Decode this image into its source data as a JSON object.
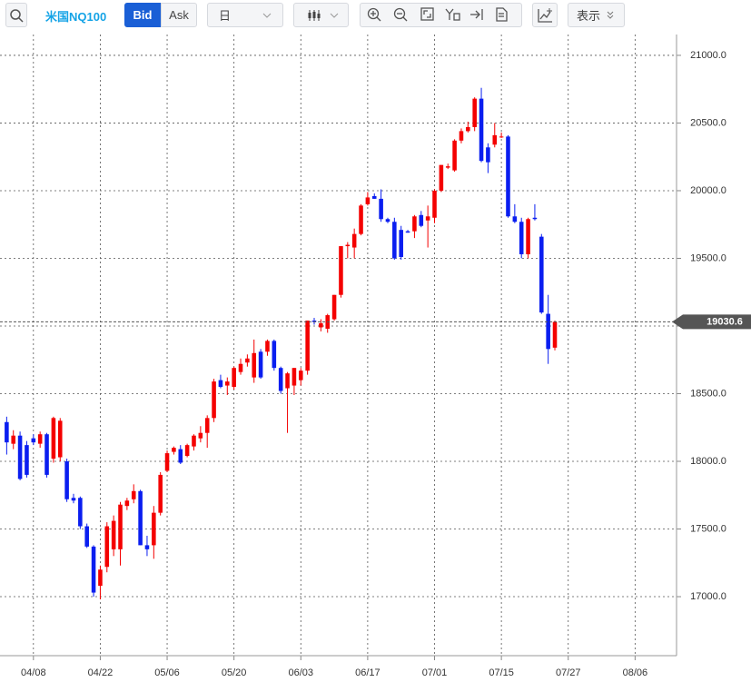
{
  "toolbar": {
    "symbol": "米国NQ100",
    "bid": "Bid",
    "ask": "Ask",
    "period": "日",
    "display": "表示"
  },
  "chart_data": {
    "type": "candlestick",
    "x": [
      0,
      1,
      2,
      3,
      4,
      5,
      6,
      7,
      8,
      9,
      10,
      11,
      12,
      13,
      14,
      15,
      16,
      17,
      18,
      19,
      20,
      21,
      22,
      23,
      24,
      25,
      26,
      27,
      28,
      29,
      30,
      31,
      32,
      33,
      34,
      35,
      36,
      37,
      38,
      39,
      40,
      41,
      42,
      43,
      44,
      45,
      46,
      47,
      48,
      49,
      50,
      51,
      52,
      53,
      54,
      55,
      56,
      57,
      58,
      59,
      60,
      61,
      62,
      63,
      64,
      65,
      66,
      67,
      68,
      69,
      70,
      71,
      72,
      73,
      74,
      75,
      76,
      77,
      78,
      79,
      80,
      81,
      82
    ],
    "open": [
      18290,
      18130,
      18190,
      18120,
      18170,
      18130,
      18200,
      18020,
      18030,
      18000,
      17730,
      17730,
      17520,
      17370,
      17080,
      17220,
      17350,
      17350,
      17670,
      17720,
      17780,
      17380,
      17380,
      17620,
      17930,
      18070,
      18090,
      18040,
      18110,
      18170,
      18210,
      18320,
      18600,
      18560,
      18550,
      18660,
      18730,
      18620,
      18810,
      18810,
      18890,
      18690,
      18540,
      18560,
      18600,
      18670,
      19040,
      18990,
      18980,
      19050,
      19230,
      19590,
      19580,
      19680,
      19900,
      19960,
      19940,
      19790,
      19770,
      19710,
      19700,
      19700,
      19820,
      19780,
      19800,
      20000,
      20170,
      20150,
      20370,
      20440,
      20470,
      20680,
      20320,
      20340,
      20400,
      20400,
      19810,
      19770,
      19530,
      19800,
      19660,
      19090,
      18840
    ],
    "high": [
      18330,
      18230,
      18220,
      18150,
      18200,
      18220,
      18210,
      18330,
      18320,
      18020,
      17760,
      17740,
      17540,
      17380,
      17230,
      17550,
      17600,
      17700,
      17730,
      17830,
      17790,
      17450,
      17670,
      17920,
      18080,
      18110,
      18120,
      18130,
      18200,
      18260,
      18340,
      18610,
      18640,
      18620,
      18700,
      18760,
      18790,
      18900,
      18830,
      18900,
      18900,
      18700,
      18660,
      18690,
      18690,
      19040,
      19060,
      19050,
      19090,
      19230,
      19590,
      19620,
      19720,
      19900,
      19990,
      19980,
      20010,
      19800,
      19800,
      19740,
      19710,
      19820,
      19850,
      19890,
      20010,
      20190,
      20200,
      20380,
      20460,
      20510,
      20690,
      20760,
      20350,
      20500,
      20430,
      20410,
      19900,
      19800,
      19800,
      19900,
      19680,
      19230,
      19040
    ],
    "low": [
      18050,
      18090,
      17860,
      17880,
      18120,
      18100,
      17880,
      17990,
      18000,
      17700,
      17690,
      17500,
      17360,
      17000,
      16980,
      17180,
      17300,
      17230,
      17640,
      17690,
      17380,
      17300,
      17280,
      17600,
      17920,
      18050,
      17980,
      18030,
      18080,
      18140,
      18100,
      18290,
      18540,
      18490,
      18530,
      18640,
      18700,
      18580,
      18610,
      18780,
      18670,
      18500,
      18210,
      18490,
      18560,
      18640,
      19010,
      18960,
      18950,
      19040,
      19210,
      19500,
      19500,
      19670,
      19890,
      19940,
      19770,
      19760,
      19490,
      19490,
      19690,
      19650,
      19730,
      19580,
      19760,
      19990,
      20160,
      20140,
      20350,
      20430,
      20440,
      20210,
      20130,
      20320,
      20390,
      19800,
      19760,
      19500,
      19500,
      19780,
      19090,
      18720,
      18820
    ],
    "close": [
      18140,
      18190,
      17870,
      17900,
      18140,
      18200,
      17900,
      18320,
      18300,
      17720,
      17710,
      17520,
      17370,
      17030,
      17200,
      17520,
      17560,
      17680,
      17710,
      17780,
      17380,
      17350,
      17620,
      17900,
      18060,
      18100,
      17990,
      18120,
      18190,
      18210,
      18320,
      18590,
      18550,
      18590,
      18690,
      18720,
      18760,
      18800,
      18620,
      18890,
      18690,
      18520,
      18650,
      18690,
      18670,
      19040,
      19030,
      19020,
      19080,
      19230,
      19590,
      19600,
      19680,
      19890,
      19950,
      19940,
      19790,
      19770,
      19500,
      19510,
      19690,
      19810,
      19740,
      19810,
      20000,
      20190,
      20180,
      20370,
      20440,
      20470,
      20680,
      20220,
      20210,
      20410,
      20400,
      19810,
      19770,
      19530,
      19790,
      19790,
      19100,
      18830,
      19030.6
    ],
    "up_color": "#f40000",
    "down_color": "#0a1ef0",
    "xlim": [
      -1,
      100.2
    ],
    "ylim": [
      16564,
      21154
    ],
    "xticks": [
      {
        "value": 4,
        "label": "04/08"
      },
      {
        "value": 14,
        "label": "04/22"
      },
      {
        "value": 24,
        "label": "05/06"
      },
      {
        "value": 34,
        "label": "05/20"
      },
      {
        "value": 44,
        "label": "06/03"
      },
      {
        "value": 54,
        "label": "06/17"
      },
      {
        "value": 64,
        "label": "07/01"
      },
      {
        "value": 74,
        "label": "07/15"
      },
      {
        "value": 84,
        "label": "07/27"
      },
      {
        "value": 94,
        "label": "08/06"
      }
    ],
    "yticks": [
      {
        "value": 17000,
        "label": "17000.0"
      },
      {
        "value": 17500,
        "label": "17500.0"
      },
      {
        "value": 18000,
        "label": "18000.0"
      },
      {
        "value": 18500,
        "label": "18500.0"
      },
      {
        "value": 19000,
        "label": "19000.0"
      },
      {
        "value": 19500,
        "label": "19500.0"
      },
      {
        "value": 20000,
        "label": "20000.0"
      },
      {
        "value": 20500,
        "label": "20500.0"
      },
      {
        "value": 21000,
        "label": "21000.0"
      }
    ],
    "grid": true,
    "current_price": 19030.6
  }
}
